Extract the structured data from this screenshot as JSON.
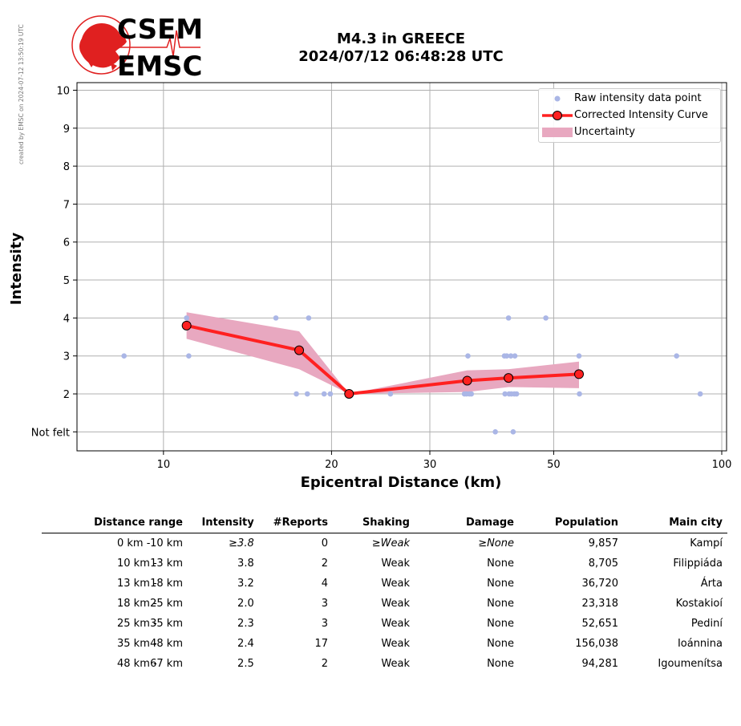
{
  "stamp": "created by EMSC on 2024-07-12 13:50:19 UTC",
  "logo": {
    "top": "CSEM",
    "bottom": "EMSC"
  },
  "title": {
    "line1": "M4.3 in GREECE",
    "line2": "2024/07/12 06:48:28 UTC"
  },
  "chart_data": {
    "type": "line",
    "xlabel": "Epicentral Distance (km)",
    "ylabel": "Intensity",
    "xscale": "log",
    "xlim": [
      7.0,
      102
    ],
    "ylim": [
      0.5,
      10.2
    ],
    "xticks": [
      10,
      20,
      30,
      50,
      100
    ],
    "yticks": [
      {
        "value": 1,
        "label": "Not felt"
      },
      {
        "value": 2,
        "label": "2"
      },
      {
        "value": 3,
        "label": "3"
      },
      {
        "value": 4,
        "label": "4"
      },
      {
        "value": 5,
        "label": "5"
      },
      {
        "value": 6,
        "label": "6"
      },
      {
        "value": 7,
        "label": "7"
      },
      {
        "value": 8,
        "label": "8"
      },
      {
        "value": 9,
        "label": "9"
      },
      {
        "value": 10,
        "label": "10"
      }
    ],
    "grid": true,
    "legend_position": "top-right",
    "legend": [
      "Raw intensity data point",
      "Corrected Intensity Curve",
      "Uncertainty"
    ],
    "colors": {
      "raw": "#aab6e6",
      "curve": "#ff2020",
      "band": "#e8a8c0"
    },
    "raw_points": [
      [
        8.5,
        3
      ],
      [
        11.0,
        4
      ],
      [
        11.1,
        3
      ],
      [
        15.9,
        4
      ],
      [
        17.3,
        2
      ],
      [
        18.1,
        2
      ],
      [
        18.2,
        4
      ],
      [
        19.4,
        2
      ],
      [
        19.9,
        2
      ],
      [
        25.5,
        2
      ],
      [
        34.6,
        2
      ],
      [
        34.9,
        2
      ],
      [
        35.1,
        3
      ],
      [
        35.3,
        2
      ],
      [
        35.6,
        2
      ],
      [
        39.3,
        1
      ],
      [
        40.8,
        3
      ],
      [
        40.9,
        2
      ],
      [
        41.2,
        3
      ],
      [
        41.5,
        4
      ],
      [
        41.6,
        2
      ],
      [
        41.9,
        3
      ],
      [
        42.0,
        2
      ],
      [
        42.3,
        1
      ],
      [
        42.5,
        2
      ],
      [
        42.6,
        3
      ],
      [
        42.9,
        2
      ],
      [
        48.4,
        4
      ],
      [
        55.5,
        3
      ],
      [
        55.6,
        2
      ],
      [
        83.0,
        3
      ],
      [
        91.5,
        2
      ]
    ],
    "curve": [
      {
        "x": 11.0,
        "y": 3.8
      },
      {
        "x": 17.5,
        "y": 3.15
      },
      {
        "x": 21.5,
        "y": 2.0
      },
      {
        "x": 35.0,
        "y": 2.35
      },
      {
        "x": 41.5,
        "y": 2.42
      },
      {
        "x": 55.5,
        "y": 2.52
      }
    ],
    "band_upper": [
      4.15,
      3.65,
      2.0,
      2.62,
      2.65,
      2.85
    ],
    "band_lower": [
      3.45,
      2.65,
      2.0,
      2.05,
      2.18,
      2.15
    ]
  },
  "table": {
    "headers": [
      "Distance range",
      "Intensity",
      "#Reports",
      "Shaking",
      "Damage",
      "Population",
      "Main city"
    ],
    "rows": [
      {
        "range_from": "0 km -",
        "range_to": "10 km",
        "intensity": "≥3.8",
        "reports": "0",
        "shaking": "≥Weak",
        "damage": "≥None",
        "population": "9,857",
        "city": "Kampí"
      },
      {
        "range_from": "10 km -",
        "range_to": "13 km",
        "intensity": "3.8",
        "reports": "2",
        "shaking": "Weak",
        "damage": "None",
        "population": "8,705",
        "city": "Filippiáda"
      },
      {
        "range_from": "13 km -",
        "range_to": "18 km",
        "intensity": "3.2",
        "reports": "4",
        "shaking": "Weak",
        "damage": "None",
        "population": "36,720",
        "city": "Árta"
      },
      {
        "range_from": "18 km -",
        "range_to": "25 km",
        "intensity": "2.0",
        "reports": "3",
        "shaking": "Weak",
        "damage": "None",
        "population": "23,318",
        "city": "Kostakioí"
      },
      {
        "range_from": "25 km -",
        "range_to": "35 km",
        "intensity": "2.3",
        "reports": "3",
        "shaking": "Weak",
        "damage": "None",
        "population": "52,651",
        "city": "Pediní"
      },
      {
        "range_from": "35 km -",
        "range_to": "48 km",
        "intensity": "2.4",
        "reports": "17",
        "shaking": "Weak",
        "damage": "None",
        "population": "156,038",
        "city": "Ioánnina"
      },
      {
        "range_from": "48 km -",
        "range_to": "67 km",
        "intensity": "2.5",
        "reports": "2",
        "shaking": "Weak",
        "damage": "None",
        "population": "94,281",
        "city": "Igoumenítsa"
      }
    ]
  }
}
